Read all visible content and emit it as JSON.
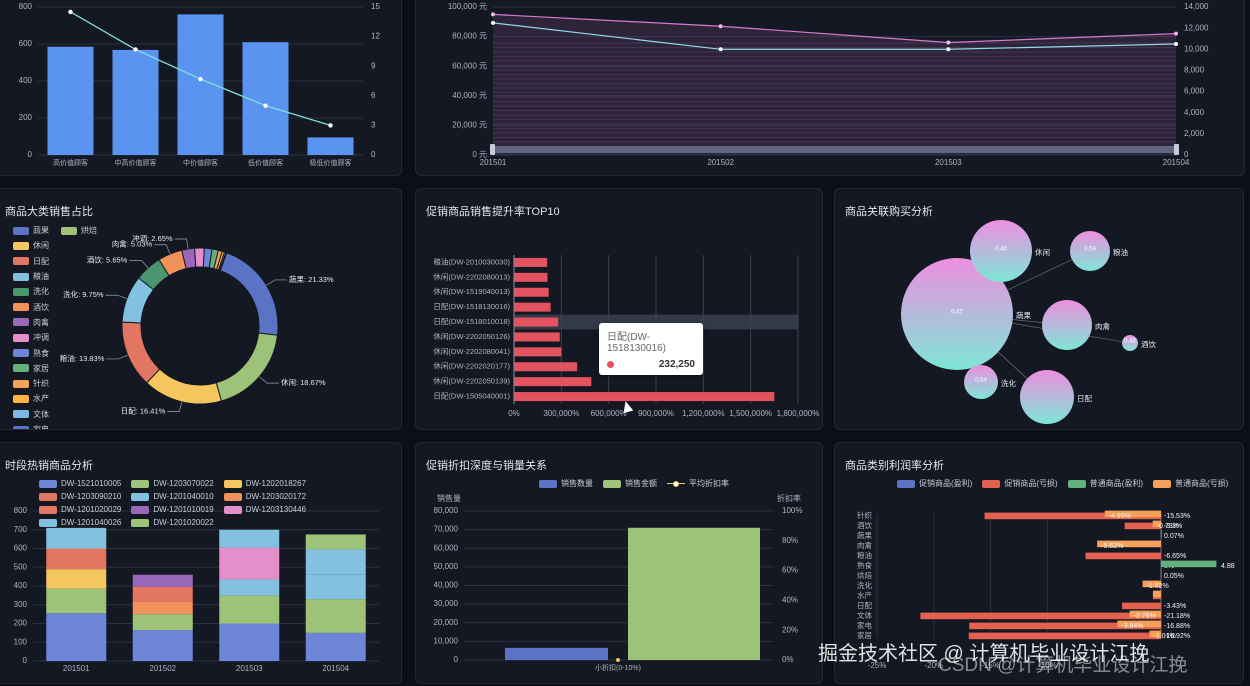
{
  "panels": {
    "segment": {
      "y_left_ticks": [
        "0",
        "200",
        "400",
        "600",
        "800"
      ],
      "y_right_ticks": [
        "0",
        "3",
        "6",
        "9",
        "12",
        "15"
      ]
    },
    "monthly": {
      "y_left_ticks": [
        "0 元",
        "20,000 元",
        "40,000 元",
        "60,000 元",
        "80,000 元",
        "100,000 元"
      ],
      "y_right_ticks": [
        "0",
        "2,000",
        "4,000",
        "6,000",
        "8,000",
        "10,000",
        "12,000",
        "14,000"
      ]
    },
    "category_share": {
      "title": "商品大类销售占比"
    },
    "promo_top10": {
      "title": "促销商品销售提升率TOP10",
      "x_ticks": [
        "0%",
        "300,000%",
        "600,000%",
        "900,000%",
        "1,200,000%",
        "1,500,000%",
        "1,800,000%"
      ],
      "tooltip": {
        "label": "日配(DW-1518130016)",
        "value": "232,250"
      }
    },
    "association": {
      "title": "商品关联购买分析"
    },
    "hot_items": {
      "title": "时段热销商品分析",
      "y_ticks": [
        "0",
        "100",
        "200",
        "300",
        "400",
        "500",
        "600",
        "700",
        "800"
      ]
    },
    "discount": {
      "title": "促销折扣深度与销量关系",
      "legend": [
        "销售数量",
        "销售金额",
        "平均折扣率"
      ],
      "y_left_title": "销售量",
      "y_right_title": "折扣率",
      "y_left_ticks": [
        "0",
        "10,000",
        "20,000",
        "30,000",
        "40,000",
        "50,000",
        "60,000",
        "70,000",
        "80,000"
      ],
      "y_right_ticks": [
        "0%",
        "20%",
        "40%",
        "60%",
        "80%",
        "100%"
      ]
    },
    "profit": {
      "title": "商品类别利润率分析",
      "legend": [
        "促销商品(盈利)",
        "促销商品(亏损)",
        "普通商品(盈利)",
        "普通商品(亏损)"
      ],
      "x_ticks": [
        "-25%",
        "-20%",
        "-15%",
        "-10%"
      ]
    }
  },
  "watermark": {
    "line1": "掘金技术社区 @ 计算机毕业设计江挽",
    "line2": "CSDN @计算机毕业设计江挽"
  },
  "colors": {
    "palette": [
      "#5b73c4",
      "#9cc378",
      "#f3c65e",
      "#e27663",
      "#82c2e0",
      "#4a9671",
      "#f0925a",
      "#9a68b9",
      "#e48fc9",
      "#6e86d8",
      "#62b07a",
      "#f6a05a",
      "#ffb347",
      "#7cb7e6"
    ]
  },
  "chart_data": [
    {
      "type": "bar",
      "categories": [
        "高价值顾客",
        "中高价值顾客",
        "中价值顾客",
        "低价值顾客",
        "极低价值顾客"
      ],
      "series": [
        {
          "type": "bar",
          "values": [
            585,
            568,
            760,
            610,
            95
          ]
        },
        {
          "type": "line",
          "values": [
            14.5,
            10.7,
            7.7,
            5.0,
            3.0
          ]
        }
      ],
      "ylim": [
        0,
        800
      ],
      "y2lim": [
        0,
        15
      ]
    },
    {
      "type": "area",
      "categories": [
        "201501",
        "201502",
        "201503",
        "201504"
      ],
      "series": [
        {
          "type": "area",
          "values": [
            95000,
            87000,
            76000,
            82000
          ]
        },
        {
          "type": "line",
          "values": [
            12500,
            10000,
            10000,
            10500
          ]
        }
      ],
      "ylim": [
        0,
        100000
      ],
      "y2lim": [
        0,
        14000
      ]
    },
    {
      "type": "pie",
      "legend": [
        "蔬果",
        "烘焙",
        "休闲",
        "日配",
        "粮油",
        "洗化",
        "酒饮",
        "肉禽",
        "冲调",
        "熟食",
        "家居",
        "针织",
        "水产",
        "文体",
        "家电"
      ],
      "slices": [
        {
          "label": "蔬果: 21.33%",
          "value": 21.33
        },
        {
          "label": "休闲: 18.67%",
          "value": 18.67
        },
        {
          "label": "日配: 16.41%",
          "value": 16.41
        },
        {
          "label": "粮油: 13.83%",
          "value": 13.83
        },
        {
          "label": "洗化: 9.75%",
          "value": 9.75
        },
        {
          "label": "酒饮: 5.65%",
          "value": 5.65
        },
        {
          "label": "肉禽: 5.03%",
          "value": 5.03
        },
        {
          "label": "冲调: 2.65%",
          "value": 2.65
        },
        {
          "value": 2.0
        },
        {
          "value": 1.6
        },
        {
          "value": 1.3
        },
        {
          "value": 0.8
        },
        {
          "value": 0.5
        },
        {
          "value": 0.3
        },
        {
          "value": 0.18
        }
      ]
    },
    {
      "type": "bar",
      "orientation": "horizontal",
      "categories": [
        "粮油(DW-2010030030)",
        "休闲(DW-2202080013)",
        "休闲(DW-1519040013)",
        "日配(DW-1518130016)",
        "日配(DW-1518010018)",
        "休闲(DW-2202050126)",
        "休闲(DW-2202080041)",
        "休闲(DW-2202020177)",
        "休闲(DW-2202050139)",
        "日配(DW-1505040001)"
      ],
      "values": [
        210000,
        212000,
        220000,
        232250,
        280000,
        290000,
        300000,
        400000,
        490000,
        1650000
      ],
      "xlim": [
        0,
        1800000
      ]
    },
    {
      "type": "scatter",
      "points": [
        {
          "label": "蔬果",
          "value": 0.47
        },
        {
          "label": "休闲",
          "value": 0.46
        },
        {
          "label": "粮油",
          "value": 0.59
        },
        {
          "label": "肉禽"
        },
        {
          "label": "酒饮",
          "value": 0.48
        },
        {
          "label": "洗化",
          "value": 0.54
        },
        {
          "label": "日配"
        }
      ]
    },
    {
      "type": "bar",
      "stacked": true,
      "categories": [
        "201501",
        "201502",
        "201503",
        "201504"
      ],
      "series": [
        {
          "name": "DW-1521010005",
          "values": [
            255,
            165,
            200,
            150
          ]
        },
        {
          "name": "DW-1203070022",
          "values": [
            130,
            85,
            150,
            180
          ]
        },
        {
          "name": "DW-1202018267",
          "values": [
            105,
            0,
            0,
            0
          ]
        },
        {
          "name": "DW-1203090210",
          "values": [
            110,
            0,
            0,
            0
          ]
        },
        {
          "name": "DW-1201040010",
          "values": [
            110,
            0,
            85,
            130
          ]
        },
        {
          "name": "DW-1203020172",
          "values": [
            0,
            65,
            0,
            0
          ]
        },
        {
          "name": "DW-1201020029",
          "values": [
            0,
            80,
            0,
            0
          ]
        },
        {
          "name": "DW-1201010019",
          "values": [
            0,
            65,
            0,
            0
          ]
        },
        {
          "name": "DW-1203130446",
          "values": [
            0,
            0,
            170,
            0
          ]
        },
        {
          "name": "DW-1201040026",
          "values": [
            0,
            0,
            95,
            135
          ]
        },
        {
          "name": "DW-1201020022",
          "values": [
            0,
            0,
            0,
            80
          ]
        }
      ],
      "ylim": [
        0,
        800
      ]
    },
    {
      "type": "bar",
      "categories": [
        "小折扣(0-10%)"
      ],
      "series": [
        {
          "name": "销售数量",
          "values": [
            6500
          ]
        },
        {
          "name": "销售金额",
          "values": [
            71000
          ]
        },
        {
          "name": "平均折扣率",
          "values": [
            0
          ]
        }
      ],
      "ylim": [
        0,
        80000
      ],
      "y2lim": [
        0,
        100
      ]
    },
    {
      "type": "bar",
      "orientation": "horizontal",
      "categories": [
        "针织",
        "酒饮",
        "蔬果",
        "肉禽",
        "粮油",
        "熟食",
        "烘焙",
        "洗化",
        "水产",
        "日配",
        "文体",
        "家电",
        "家居"
      ],
      "series": [
        {
          "name": "促销商品(亏损)",
          "values": [
            -15.53,
            -3.2,
            0,
            0,
            -6.65,
            0,
            0,
            0,
            -0.71,
            -3.43,
            -21.18,
            -16.88,
            -16.92
          ],
          "labels": [
            "-15.53%",
            "-3.2%",
            "",
            "",
            "-6.65%",
            "",
            "",
            "",
            "",
            "-3.43%",
            "-21.18%",
            "-16.88%",
            "-16.92%"
          ]
        },
        {
          "name": "普通商品(亏损)",
          "values": [
            -4.95,
            -0.73,
            0,
            -5.62,
            0,
            0,
            0,
            -1.62,
            -0.71,
            0,
            -2.76,
            -3.84,
            -1.01
          ],
          "labels": [
            "-4.95%",
            "-0.73%",
            "0.07%",
            "-5.62%",
            "",
            "0%",
            "0.05%",
            "-1.62%",
            "",
            "",
            "-2.76%",
            "-3.84%",
            "-1.01%"
          ]
        },
        {
          "name": "普通商品(盈利)",
          "values": [
            0,
            0,
            0.07,
            0,
            0,
            4.88,
            0.05,
            0,
            0,
            0,
            0,
            0,
            0
          ],
          "labels": [
            "",
            "",
            "",
            "",
            "",
            "4.88",
            "",
            "",
            "",
            "",
            "",
            "",
            ""
          ]
        }
      ],
      "x_ticks": [
        -25,
        -20,
        -15,
        -10
      ]
    }
  ]
}
